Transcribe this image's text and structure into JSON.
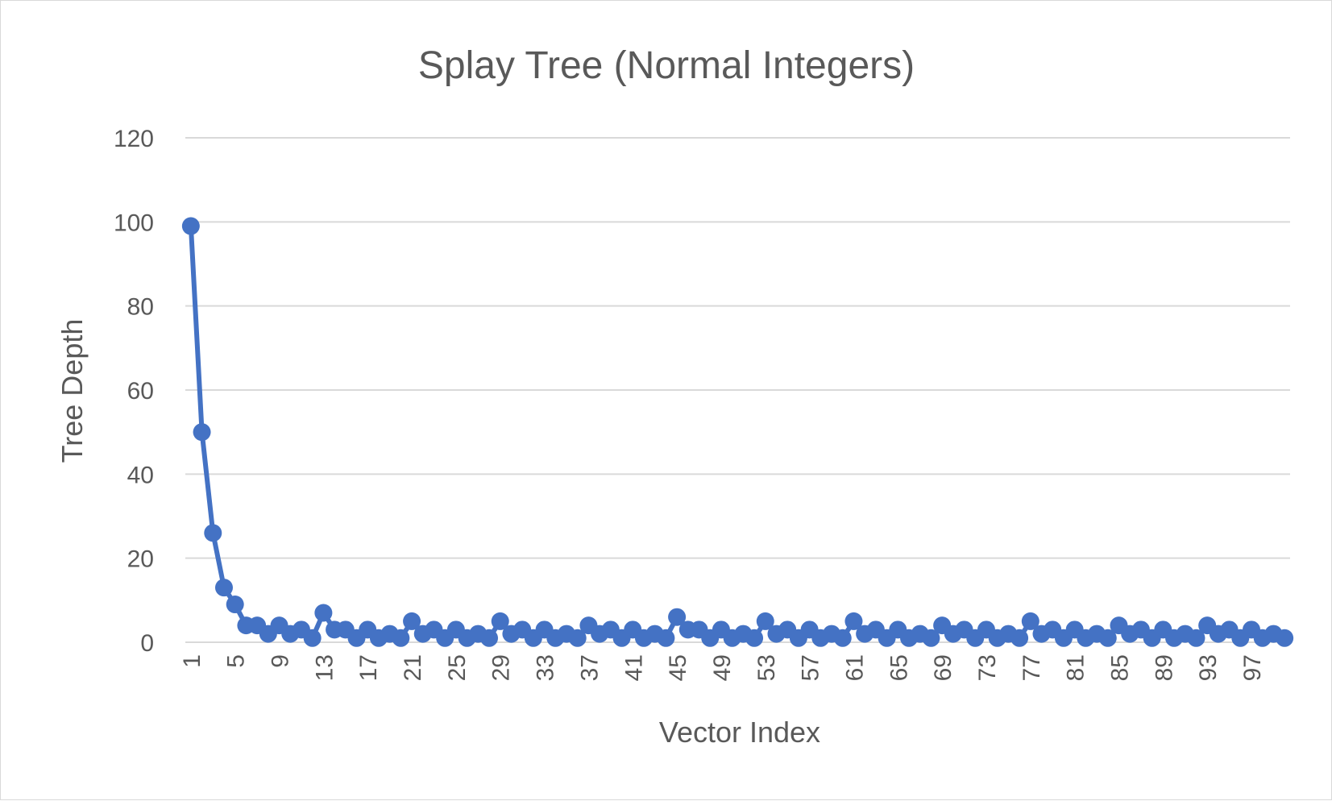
{
  "chart_data": {
    "type": "line",
    "title": "Splay Tree (Normal Integers)",
    "xlabel": "Vector Index",
    "ylabel": "Tree Depth",
    "ylim": [
      0,
      120
    ],
    "yticks": [
      0,
      20,
      40,
      60,
      80,
      100,
      120
    ],
    "xtick_labels": [
      "1",
      "5",
      "9",
      "13",
      "17",
      "21",
      "25",
      "29",
      "33",
      "37",
      "41",
      "45",
      "49",
      "53",
      "57",
      "61",
      "65",
      "69",
      "73",
      "77",
      "81",
      "85",
      "89",
      "93",
      "97"
    ],
    "grid": true,
    "legend": "none",
    "marker": "circle",
    "colors": {
      "series": "#4472c4",
      "grid": "#d9d9d9",
      "text": "#595959"
    },
    "x": [
      1,
      2,
      3,
      4,
      5,
      6,
      7,
      8,
      9,
      10,
      11,
      12,
      13,
      14,
      15,
      16,
      17,
      18,
      19,
      20,
      21,
      22,
      23,
      24,
      25,
      26,
      27,
      28,
      29,
      30,
      31,
      32,
      33,
      34,
      35,
      36,
      37,
      38,
      39,
      40,
      41,
      42,
      43,
      44,
      45,
      46,
      47,
      48,
      49,
      50,
      51,
      52,
      53,
      54,
      55,
      56,
      57,
      58,
      59,
      60,
      61,
      62,
      63,
      64,
      65,
      66,
      67,
      68,
      69,
      70,
      71,
      72,
      73,
      74,
      75,
      76,
      77,
      78,
      79,
      80,
      81,
      82,
      83,
      84,
      85,
      86,
      87,
      88,
      89,
      90,
      91,
      92,
      93,
      94,
      95,
      96,
      97,
      98,
      99,
      100
    ],
    "series": [
      {
        "values": [
          99,
          50,
          26,
          13,
          9,
          4,
          4,
          2,
          4,
          2,
          3,
          1,
          7,
          3,
          3,
          1,
          3,
          1,
          2,
          1,
          5,
          2,
          3,
          1,
          3,
          1,
          2,
          1,
          5,
          2,
          3,
          1,
          3,
          1,
          2,
          1,
          4,
          2,
          3,
          1,
          3,
          1,
          2,
          1,
          6,
          3,
          3,
          1,
          3,
          1,
          2,
          1,
          5,
          2,
          3,
          1,
          3,
          1,
          2,
          1,
          5,
          2,
          3,
          1,
          3,
          1,
          2,
          1,
          4,
          2,
          3,
          1,
          3,
          1,
          2,
          1,
          5,
          2,
          3,
          1,
          3,
          1,
          2,
          1,
          4,
          2,
          3,
          1,
          3,
          1,
          2,
          1,
          4,
          2,
          3,
          1,
          3,
          1,
          2,
          1
        ]
      }
    ]
  }
}
